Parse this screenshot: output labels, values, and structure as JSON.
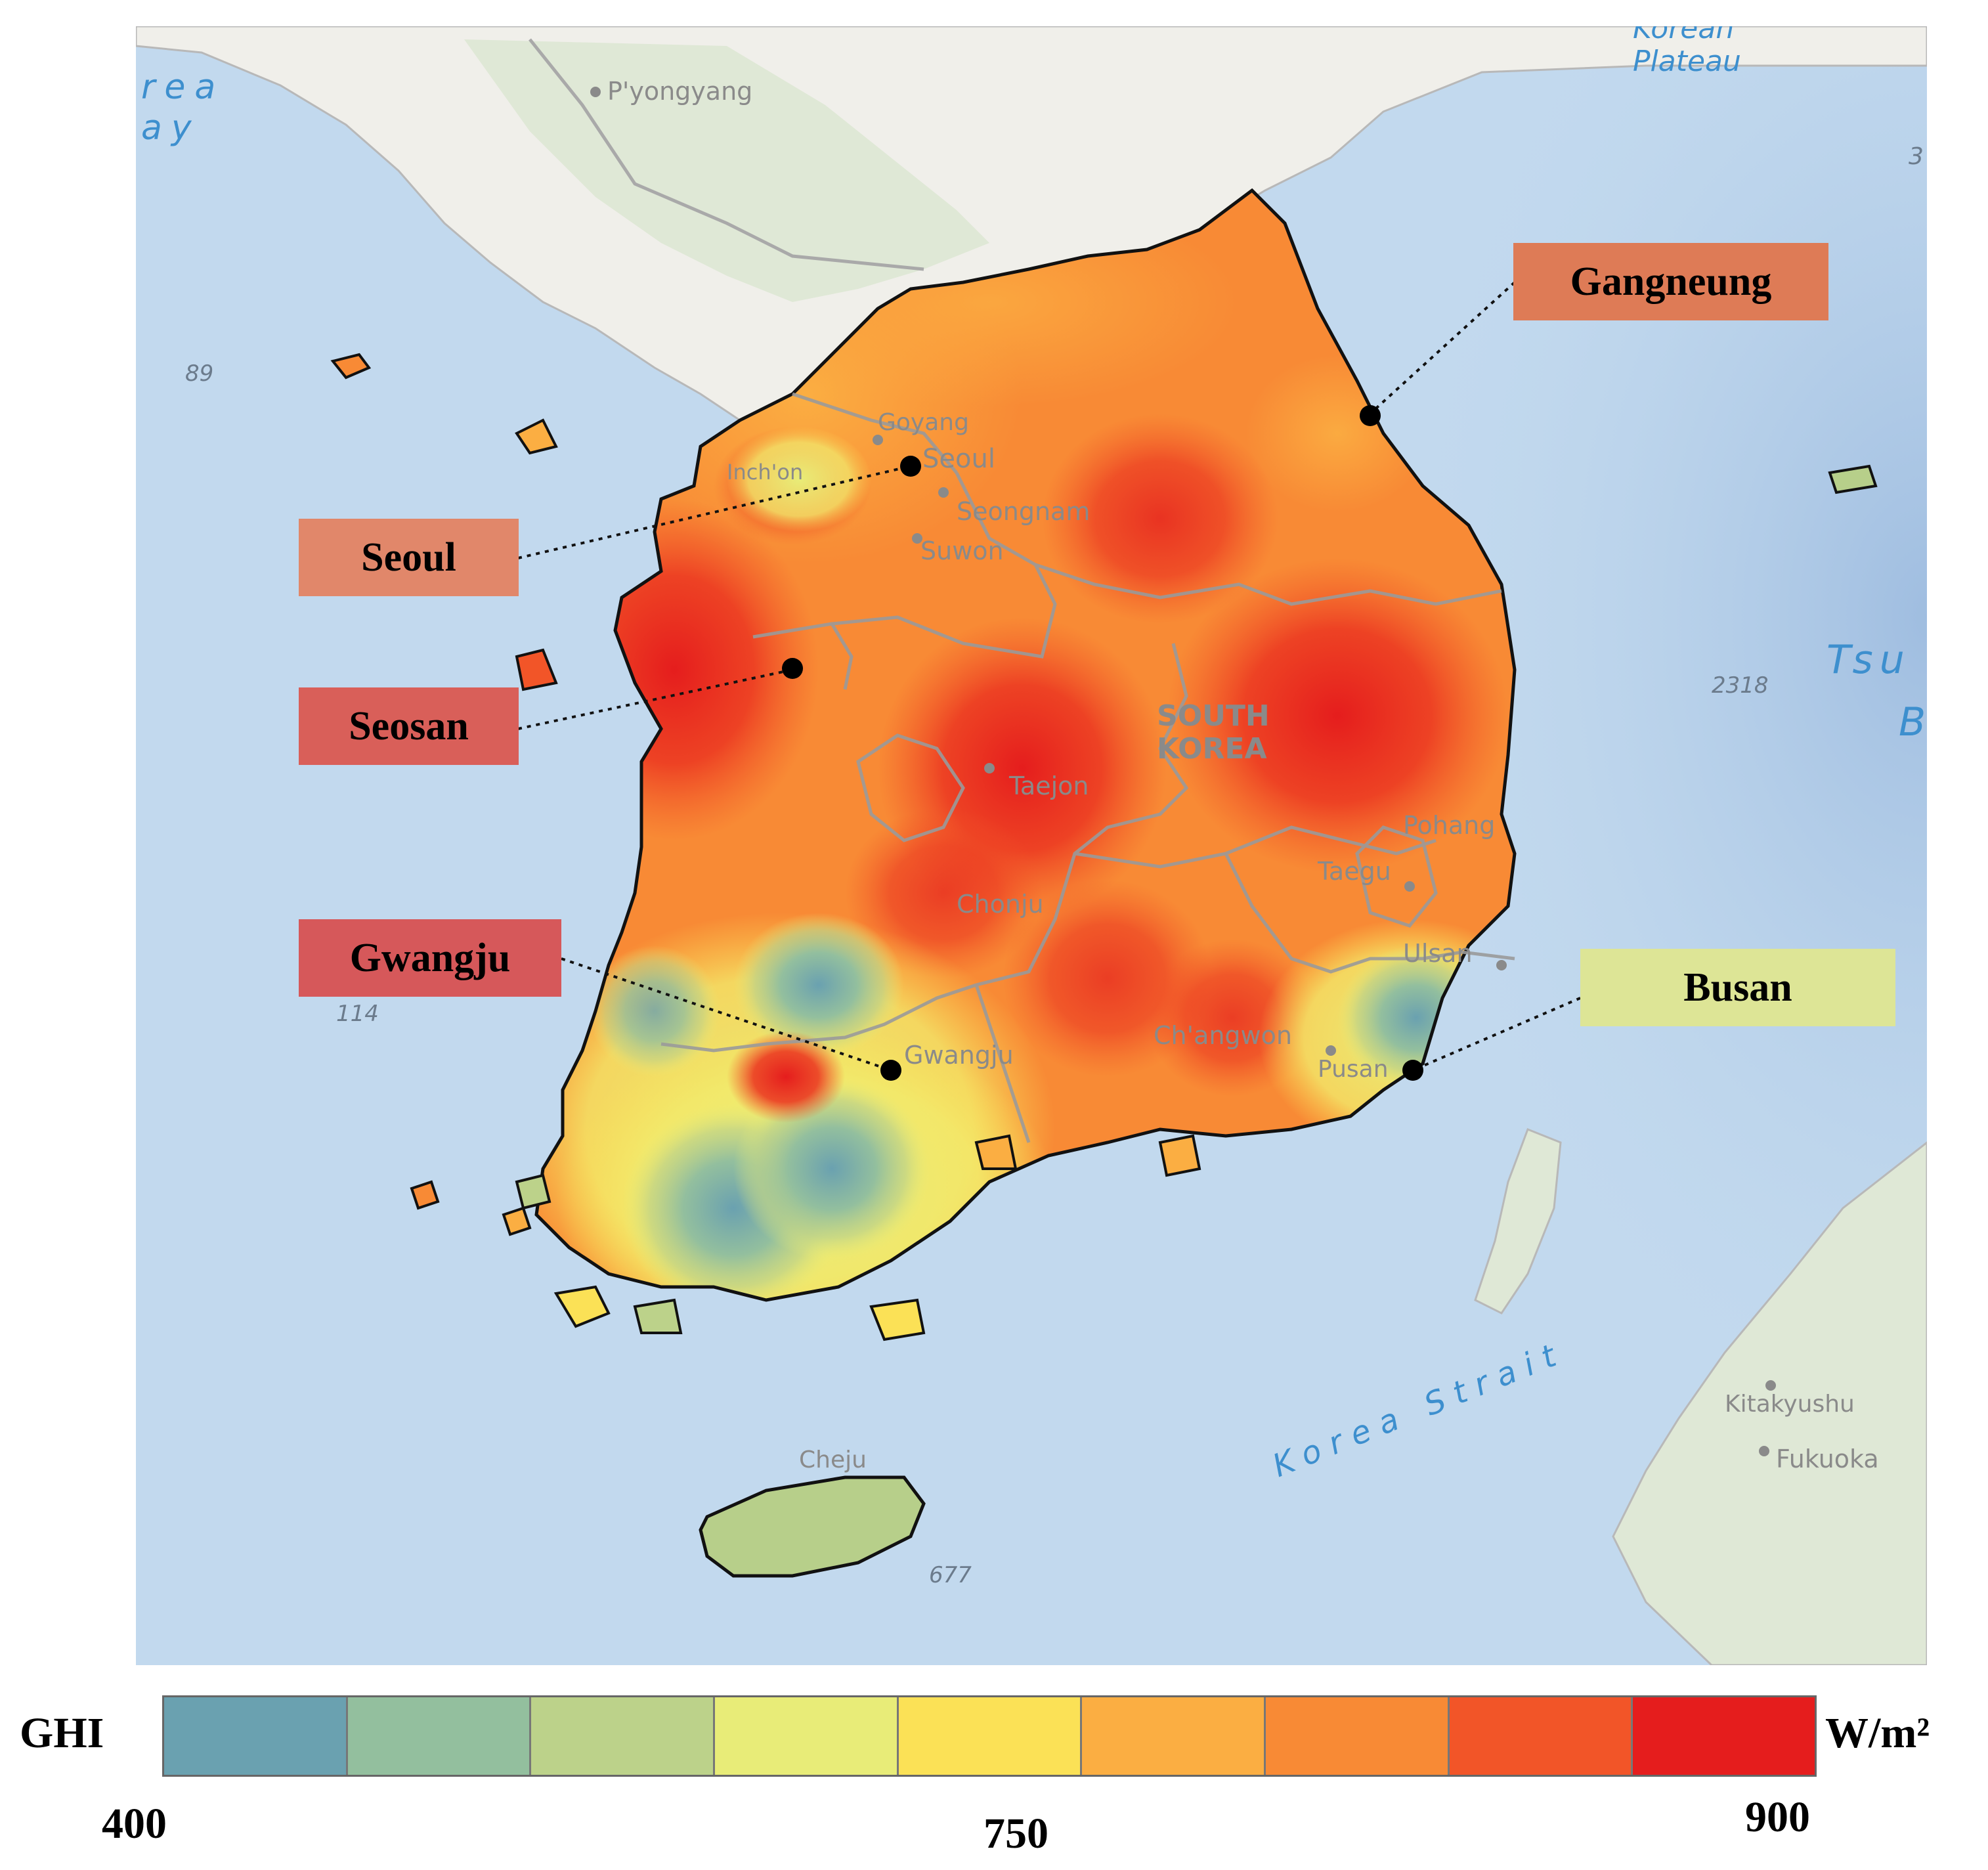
{
  "legend": {
    "title": "GHI",
    "unit": "W/m²",
    "min_label": "400",
    "mid_label": "750",
    "max_label": "900",
    "bins": [
      {
        "color": "#6aa1b0"
      },
      {
        "color": "#93bf9e"
      },
      {
        "color": "#bcd28a"
      },
      {
        "color": "#e8ec78"
      },
      {
        "color": "#fbe156"
      },
      {
        "color": "#fbae42"
      },
      {
        "color": "#f88a35"
      },
      {
        "color": "#f25528"
      },
      {
        "color": "#e51d1d"
      }
    ]
  },
  "stations": [
    {
      "id": "gangneung",
      "label": "Gangneung",
      "box_color": "#de7b56"
    },
    {
      "id": "seoul",
      "label": "Seoul",
      "box_color": "#e1876a"
    },
    {
      "id": "seosan",
      "label": "Seosan",
      "box_color": "#d95f59"
    },
    {
      "id": "gwangju",
      "label": "Gwangju",
      "box_color": "#d6585a"
    },
    {
      "id": "busan",
      "label": "Busan",
      "box_color": "#dde596"
    }
  ],
  "basemap_labels": {
    "pyongyang": "P'yongyang",
    "goyang": "Goyang",
    "seoul": "Seoul",
    "incheon": "Inch'on",
    "seongnam": "Seongnam",
    "suwon": "Suwon",
    "daejeon": "Taejon",
    "pohang": "Pohang",
    "daegu": "Taegu",
    "jeonju": "Chonju",
    "ulsan": "Ulsan",
    "gwangju": "Gwangju",
    "changwon": "Ch'angwon",
    "busan": "Pusan",
    "jeju": "Cheju",
    "kitakyushu": "Kitakyushu",
    "fukuoka": "Fukuoka",
    "country_line1": "SOUTH",
    "country_line2": "KOREA"
  },
  "water_labels": {
    "korea_bay_1": "rea",
    "korea_bay_2": "ay",
    "korea_strait": "Korea Strait",
    "plateau_1": "Korean",
    "plateau_2": "Plateau",
    "tsu_1": "Tsu",
    "tsu_2": "B",
    "edge_num": "3"
  },
  "depths": {
    "d89": "89",
    "d114": "114",
    "d2318": "2318",
    "d677": "677"
  },
  "colors": {
    "sea": "#c2d9ee",
    "deep_sea": "#a9c6e6",
    "land_gray": "#f0efea",
    "land_green": "#dfe8d6",
    "jeju": "#b7cf8a"
  }
}
